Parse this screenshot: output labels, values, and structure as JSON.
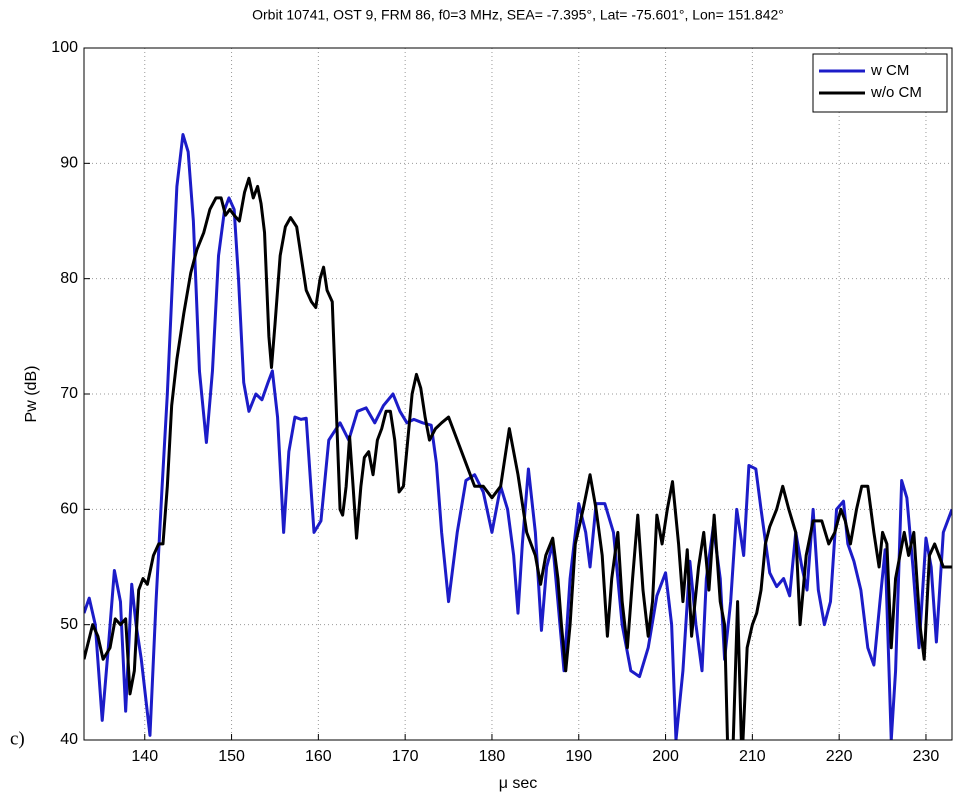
{
  "chart_data": {
    "type": "line",
    "title": "Orbit 10741, OST 9, FRM 86, f0=3 MHz, SEA= -7.395°, Lat= -75.601°, Lon= 151.842°",
    "xlabel": "μ sec",
    "ylabel": "Pw (dB)",
    "annotation": "c)",
    "xlim": [
      133,
      233
    ],
    "ylim": [
      40,
      100
    ],
    "xticks": [
      140,
      150,
      160,
      170,
      180,
      190,
      200,
      210,
      220,
      230
    ],
    "yticks": [
      40,
      50,
      60,
      70,
      80,
      90,
      100
    ],
    "grid": true,
    "legend": "upper right",
    "series": [
      {
        "name": "w CM",
        "color": "#1c1cc8",
        "x": [
          133,
          133.6,
          134.3,
          135.1,
          135.8,
          136.5,
          137.2,
          137.8,
          138.5,
          139,
          139.6,
          140.6,
          141.3,
          142,
          142.6,
          143.2,
          143.7,
          144.4,
          145,
          145.6,
          146.3,
          147.1,
          147.8,
          148.5,
          149.2,
          149.7,
          150.3,
          150.8,
          151.4,
          152,
          152.8,
          153.5,
          154.2,
          154.7,
          155.3,
          156,
          156.6,
          157.3,
          158,
          158.6,
          159.5,
          160.3,
          161.2,
          162.5,
          163.5,
          164.5,
          165.5,
          166.5,
          167.5,
          168.6,
          169.4,
          170.2,
          171,
          172,
          173,
          173.6,
          174.2,
          175,
          176,
          177,
          178,
          179,
          180,
          181,
          181.8,
          182.5,
          183,
          183.5,
          184.2,
          185,
          185.7,
          186.3,
          187,
          187.6,
          188.3,
          189,
          190,
          190.8,
          191.3,
          192,
          193,
          194,
          195,
          196,
          197,
          198,
          199,
          200,
          200.7,
          201.2,
          202,
          202.8,
          203.5,
          204.2,
          204.7,
          205.5,
          206.3,
          206.8,
          207.5,
          208.2,
          209,
          209.6,
          210.4,
          211,
          212,
          212.8,
          213.6,
          214.3,
          215,
          215.7,
          216.3,
          217,
          217.6,
          218.3,
          219,
          219.7,
          220.5,
          221,
          221.7,
          222.5,
          223.3,
          224,
          224.7,
          225.3,
          226,
          226.5,
          227.2,
          227.8,
          228.5,
          229.2,
          230,
          230.6,
          231.2,
          232,
          233
        ],
        "values": [
          51,
          52.3,
          50,
          41.7,
          48,
          54.7,
          52,
          42.5,
          53.5,
          50,
          47,
          40.4,
          52,
          62,
          70,
          80,
          88,
          92.5,
          91,
          85,
          72,
          65.8,
          72,
          82,
          86,
          87,
          86,
          80,
          71,
          68.5,
          70,
          69.5,
          71,
          72,
          68,
          58,
          65,
          68,
          67.8,
          67.9,
          58,
          59,
          66,
          67.5,
          66,
          68.5,
          68.8,
          67.5,
          69,
          70,
          68.5,
          67.5,
          67.8,
          67.5,
          67.3,
          64,
          58,
          52,
          58,
          62.5,
          63,
          61.5,
          58,
          62,
          60,
          56,
          51,
          57,
          63.5,
          58,
          49.5,
          55,
          57,
          52,
          46,
          54,
          60.5,
          58,
          55,
          60.5,
          60.5,
          58,
          50,
          46,
          45.5,
          48,
          52.5,
          54.5,
          50,
          40,
          46,
          55.5,
          50,
          46,
          54,
          58.5,
          54,
          47,
          52,
          60,
          56,
          63.8,
          63.5,
          60,
          54.5,
          53.3,
          54,
          52.5,
          58,
          55,
          53,
          60,
          53,
          50,
          52,
          60,
          60.7,
          57,
          55.5,
          53,
          48,
          46.5,
          52,
          56.5,
          40,
          46,
          62.5,
          61,
          55,
          48,
          57.5,
          55,
          48.5,
          58,
          60
        ]
      },
      {
        "name": "w/o CM",
        "color": "#000000",
        "x": [
          133,
          134,
          134.6,
          135.2,
          136,
          136.6,
          137.2,
          137.8,
          138.3,
          138.8,
          139.3,
          139.8,
          140.3,
          141,
          141.6,
          142.1,
          142.6,
          143.1,
          143.7,
          144.5,
          145.3,
          146,
          146.8,
          147.5,
          148.2,
          148.8,
          149.3,
          149.8,
          150.3,
          150.9,
          151.5,
          152,
          152.5,
          153,
          153.4,
          153.8,
          154.3,
          154.6,
          155,
          155.6,
          156.2,
          156.8,
          157.5,
          158,
          158.6,
          159.2,
          159.7,
          160.2,
          160.6,
          161,
          161.6,
          162,
          162.5,
          162.8,
          163.2,
          163.6,
          164,
          164.4,
          164.9,
          165.3,
          165.8,
          166.3,
          166.8,
          167.3,
          167.8,
          168.3,
          168.8,
          169.3,
          169.8,
          170.3,
          170.8,
          171.3,
          171.8,
          172.3,
          172.8,
          173.5,
          174.2,
          175,
          176,
          177,
          178,
          179,
          180,
          181,
          182,
          183,
          184,
          185,
          185.6,
          186.2,
          187,
          187.6,
          188,
          188.5,
          189,
          189.6,
          190.5,
          191.3,
          192,
          192.7,
          193.3,
          193.8,
          194.5,
          195,
          195.6,
          196.2,
          196.8,
          197.4,
          198,
          198.5,
          199,
          199.6,
          200.2,
          200.8,
          201.5,
          202,
          202.5,
          203,
          203.8,
          204.4,
          205,
          205.6,
          206.3,
          206.8,
          207.2,
          207.8,
          208.3,
          208.8,
          209.4,
          210,
          210.5,
          211,
          211.5,
          212,
          212.8,
          213.5,
          214.2,
          215,
          215.5,
          216.2,
          217,
          218,
          218.8,
          219.5,
          220.2,
          220.7,
          221.3,
          222,
          222.6,
          223.3,
          224,
          224.6,
          225,
          225.5,
          226,
          226.5,
          227,
          227.5,
          228,
          228.6,
          229.3,
          229.8,
          230.4,
          231,
          232,
          233
        ],
        "values": [
          47,
          50,
          49,
          47,
          48,
          50.5,
          50,
          50.5,
          44,
          46,
          53,
          54,
          53.5,
          56,
          57,
          57,
          62,
          69,
          73,
          77,
          80.5,
          82.5,
          84,
          86,
          87,
          87,
          85.5,
          86,
          85.5,
          85,
          87.5,
          88.7,
          87,
          88,
          86.5,
          84,
          75,
          72.3,
          76,
          82,
          84.5,
          85.3,
          84.5,
          82,
          79,
          78,
          77.5,
          80,
          81,
          79,
          78,
          70,
          60,
          59.5,
          62,
          66.3,
          62,
          57.5,
          62,
          64.5,
          65,
          63,
          66,
          67,
          68.5,
          68.5,
          66,
          61.5,
          62,
          66,
          70,
          71.7,
          70.5,
          68,
          66,
          67,
          67.5,
          68,
          66,
          64,
          62,
          62,
          61,
          62,
          67,
          63,
          58,
          56,
          53.5,
          56,
          57.5,
          54,
          50,
          46,
          50,
          57,
          60,
          63,
          60,
          56,
          49,
          54,
          58,
          52,
          48,
          54,
          59.5,
          53,
          49,
          52,
          59.5,
          57,
          60,
          62.4,
          57,
          52,
          56.5,
          49,
          55,
          58,
          53,
          59.5,
          52,
          50,
          38,
          40,
          52,
          38,
          48,
          50,
          51,
          53,
          57,
          58.5,
          60,
          62,
          60,
          58,
          50,
          56,
          59,
          59,
          57,
          58,
          60,
          59,
          57,
          60,
          62,
          62,
          58,
          55,
          58,
          57,
          48,
          54,
          56,
          58,
          56,
          58,
          50,
          47,
          56,
          57,
          55,
          55
        ]
      }
    ]
  }
}
